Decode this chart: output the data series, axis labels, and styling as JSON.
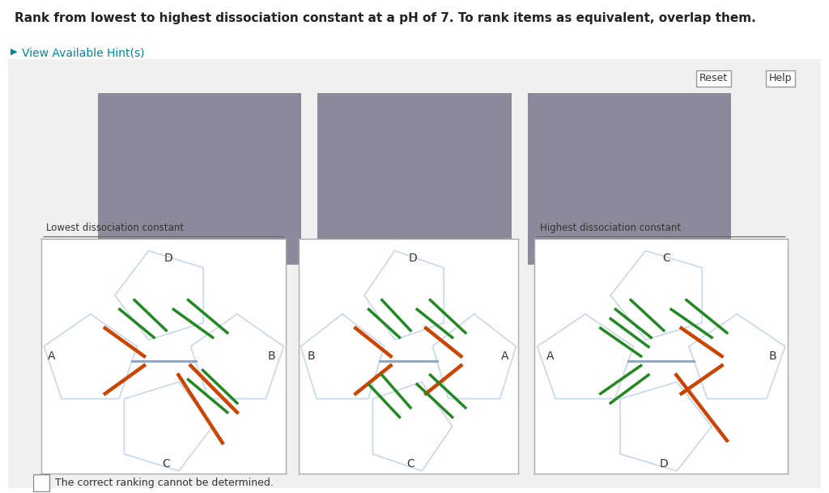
{
  "title": "Rank from lowest to highest dissociation constant at a pH of 7. To rank items as equivalent, overlap them.",
  "hint_text": "View Available Hint(s)",
  "checkbox_text": "The correct ranking cannot be determined.",
  "gray_box_color": "#8a8a9a",
  "box_labels": [
    "Lowest dissociation constant",
    "",
    "Highest dissociation constant"
  ],
  "orange_color": "#cc4400",
  "green_color": "#228822",
  "pent_color": "#c8d8e8",
  "center_color": "#88aacc"
}
